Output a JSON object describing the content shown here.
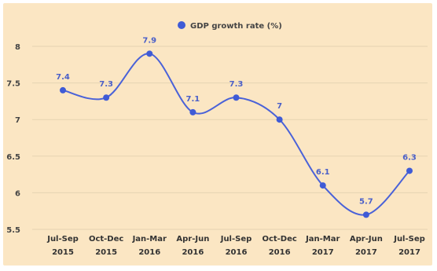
{
  "chart_data": {
    "type": "line",
    "legend": {
      "label": "GDP growth rate (%)",
      "position": "top"
    },
    "categories": [
      [
        "Jul-Sep",
        "2015"
      ],
      [
        "Oct-Dec",
        "2015"
      ],
      [
        "Jan-Mar",
        "2016"
      ],
      [
        "Apr-Jun",
        "2016"
      ],
      [
        "Jul-Sep",
        "2016"
      ],
      [
        "Oct-Dec",
        "2016"
      ],
      [
        "Jan-Mar",
        "2017"
      ],
      [
        "Apr-Jun",
        "2017"
      ],
      [
        "Jul-Sep",
        "2017"
      ]
    ],
    "series": [
      {
        "name": "GDP growth rate (%)",
        "values": [
          7.4,
          7.3,
          7.9,
          7.1,
          7.3,
          7,
          6.1,
          5.7,
          6.3
        ],
        "labels": [
          "7.4",
          "7.3",
          "7.9",
          "7.1",
          "7.3",
          "7",
          "6.1",
          "5.7",
          "6.3"
        ]
      }
    ],
    "y_ticks": [
      "8",
      "7.5",
      "7",
      "6.5",
      "6",
      "5.5"
    ],
    "y_tick_values": [
      8,
      7.5,
      7,
      6.5,
      6,
      5.5
    ],
    "ylim": [
      5.5,
      8
    ],
    "grid": true,
    "smooth": true,
    "colors": {
      "line": "#4a62d8",
      "marker": "#3f5bd6",
      "label": "#4a5fc8",
      "grid": "#e6d3b2",
      "background": "#fbe6c3"
    }
  }
}
